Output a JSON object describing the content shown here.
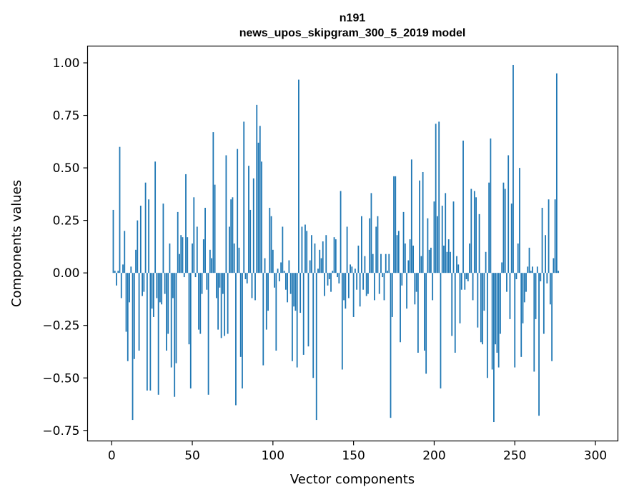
{
  "chart_data": {
    "type": "bar",
    "title": "n191",
    "subtitle": "news_upos_skipgram_300_5_2019 model",
    "xlabel": "Vector components",
    "ylabel": "Components values",
    "xlim": [
      -14.95,
      313.95
    ],
    "ylim": [
      -0.8,
      1.08
    ],
    "xticks": [
      0,
      50,
      100,
      150,
      200,
      250,
      300
    ],
    "xtick_labels": [
      "0",
      "50",
      "100",
      "150",
      "200",
      "250",
      "300"
    ],
    "yticks": [
      -0.75,
      -0.5,
      -0.25,
      0.0,
      0.25,
      0.5,
      0.75,
      1.0
    ],
    "ytick_labels": [
      "−0.75",
      "−0.50",
      "−0.25",
      "0.00",
      "0.25",
      "0.50",
      "0.75",
      "1.00"
    ],
    "grid": false,
    "bar_color": "#1f77b4",
    "values": [
      0.3,
      0.01,
      -0.06,
      0.01,
      0.6,
      -0.12,
      0.04,
      0.2,
      -0.28,
      -0.42,
      -0.14,
      0.03,
      -0.7,
      -0.41,
      0.11,
      0.25,
      -0.37,
      0.32,
      -0.11,
      -0.09,
      0.43,
      -0.56,
      0.35,
      -0.56,
      -0.17,
      -0.21,
      0.53,
      -0.12,
      -0.58,
      -0.14,
      -0.15,
      0.33,
      -0.1,
      -0.37,
      -0.29,
      0.14,
      -0.45,
      -0.12,
      -0.59,
      -0.43,
      0.29,
      0.09,
      0.18,
      0.17,
      -0.02,
      0.47,
      0.17,
      -0.34,
      -0.55,
      0.14,
      0.36,
      -0.02,
      0.22,
      -0.27,
      -0.29,
      -0.1,
      0.16,
      0.31,
      -0.08,
      -0.58,
      0.11,
      0.07,
      0.67,
      0.42,
      -0.12,
      -0.27,
      -0.07,
      -0.31,
      -0.1,
      -0.3,
      0.56,
      -0.29,
      0.22,
      0.35,
      0.36,
      0.14,
      -0.63,
      0.59,
      0.12,
      -0.4,
      -0.55,
      0.72,
      -0.03,
      -0.05,
      0.51,
      0.3,
      -0.12,
      0.45,
      -0.13,
      0.8,
      0.62,
      0.7,
      0.53,
      -0.44,
      0.07,
      -0.27,
      -0.18,
      0.31,
      0.27,
      0.11,
      -0.07,
      -0.37,
      0.02,
      -0.04,
      0.05,
      0.22,
      0.01,
      -0.08,
      -0.14,
      0.06,
      -0.1,
      -0.42,
      -0.16,
      -0.18,
      -0.45,
      0.92,
      -0.19,
      0.22,
      -0.39,
      0.23,
      0.2,
      -0.35,
      0.06,
      0.18,
      -0.5,
      0.14,
      -0.7,
      0.02,
      0.11,
      0.07,
      0.15,
      -0.11,
      0.18,
      -0.06,
      -0.03,
      -0.09,
      0.01,
      0.17,
      0.16,
      -0.02,
      -0.05,
      0.39,
      -0.46,
      -0.13,
      -0.17,
      0.22,
      -0.12,
      0.04,
      0.03,
      -0.21,
      0.02,
      -0.08,
      0.13,
      -0.16,
      0.27,
      -0.08,
      0.08,
      -0.11,
      -0.1,
      0.26,
      0.38,
      0.09,
      -0.13,
      0.22,
      0.27,
      -0.1,
      0.09,
      -0.02,
      -0.13,
      0.09,
      0.01,
      0.09,
      -0.69,
      -0.21,
      0.46,
      0.46,
      0.18,
      0.2,
      -0.33,
      -0.06,
      0.29,
      0.14,
      -0.17,
      0.06,
      0.16,
      0.54,
      0.13,
      -0.15,
      -0.09,
      -0.38,
      0.44,
      0.08,
      0.48,
      -0.37,
      -0.48,
      0.26,
      0.11,
      0.12,
      -0.13,
      0.34,
      0.71,
      0.27,
      0.72,
      -0.55,
      0.32,
      0.13,
      0.38,
      0.1,
      0.16,
      0.1,
      -0.3,
      0.34,
      -0.38,
      0.08,
      0.04,
      -0.24,
      -0.08,
      0.63,
      -0.08,
      -0.03,
      -0.04,
      0.14,
      0.4,
      -0.13,
      0.39,
      0.36,
      -0.26,
      0.28,
      -0.33,
      -0.34,
      -0.18,
      0.1,
      -0.5,
      0.43,
      0.64,
      -0.46,
      -0.71,
      -0.34,
      -0.38,
      -0.45,
      -0.29,
      0.05,
      0.43,
      0.4,
      -0.09,
      0.56,
      -0.22,
      0.33,
      0.99,
      -0.45,
      -0.03,
      0.14,
      0.5,
      -0.4,
      -0.24,
      -0.14,
      -0.09,
      0.03,
      0.12,
      0.01,
      0.03,
      -0.47,
      -0.22,
      0.03,
      -0.68,
      -0.04,
      0.31,
      -0.29,
      0.18,
      -0.05,
      0.35,
      -0.15,
      -0.42,
      0.07,
      0.35,
      0.95,
      0.01
    ],
    "value_offset": 1
  }
}
